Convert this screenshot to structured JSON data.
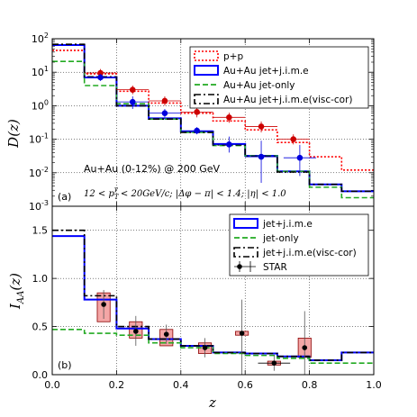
{
  "chart_data": [
    {
      "panel_id": "a",
      "type": "line",
      "panel_label": "(a)",
      "ylabel": "D(z)",
      "yscale": "log",
      "ylim": [
        0.001,
        100
      ],
      "xlim": [
        0.0,
        1.0
      ],
      "yticks": [
        {
          "value": 100,
          "base": "10",
          "exp": "2"
        },
        {
          "value": 10,
          "base": "10",
          "exp": "1"
        },
        {
          "value": 1,
          "base": "10",
          "exp": "0"
        },
        {
          "value": 0.1,
          "base": "10",
          "exp": "-1"
        },
        {
          "value": 0.01,
          "base": "10",
          "exp": "-2"
        },
        {
          "value": 0.001,
          "base": "10",
          "exp": "-3"
        }
      ],
      "grid": true,
      "legend_position": "top-right",
      "annotations": {
        "system": "Au+Au (0-12%) @ 200 GeV",
        "cuts": "12 < p_T^γ < 20GeV/c; |Δφ − π| < 1.4; |η| < 1.0",
        "cuts_parts": {
          "pre": "12 < p",
          "sub": "T",
          "sup": "γ",
          "post": " < 20GeV/c; |Δφ − π| < 1.4; |η| < 1.0"
        }
      },
      "bin_edges": [
        0.0,
        0.1,
        0.2,
        0.3,
        0.4,
        0.5,
        0.6,
        0.7,
        0.8,
        0.9,
        1.0
      ],
      "series": [
        {
          "name": "p+p",
          "color": "#ff0000",
          "style": "dotted",
          "values": [
            45,
            9.0,
            2.7,
            1.2,
            0.6,
            0.35,
            0.19,
            0.08,
            0.03,
            0.012
          ]
        },
        {
          "name": "Au+Au jet+j.i.m.e",
          "color": "#0000ff",
          "style": "solid",
          "values": [
            65,
            7.0,
            1.0,
            0.42,
            0.17,
            0.072,
            0.032,
            0.011,
            0.0045,
            0.0028
          ]
        },
        {
          "name": "Au+Au jet-only",
          "color": "#22aa22",
          "style": "dashed",
          "values": [
            21,
            4.0,
            1.15,
            0.4,
            0.16,
            0.065,
            0.032,
            0.011,
            0.0037,
            0.0018
          ]
        },
        {
          "name": "Au+Au jet+j.i.m.e(visc-cor)",
          "color": "#000000",
          "style": "dashdot",
          "values": [
            68,
            7.3,
            1.0,
            0.4,
            0.16,
            0.068,
            0.031,
            0.0105,
            0.0045,
            0.0028
          ]
        }
      ],
      "points": [
        {
          "name": "p+p data",
          "color": "#cc0000",
          "x": [
            0.15,
            0.25,
            0.35,
            0.45,
            0.55,
            0.65,
            0.75
          ],
          "y": [
            9.5,
            3.0,
            1.4,
            0.65,
            0.45,
            0.24,
            0.1
          ],
          "yerr_low": [
            2.5,
            0.8,
            0.4,
            0.2,
            0.14,
            0.08,
            0.03
          ],
          "yerr_high": [
            3.0,
            1.0,
            0.5,
            0.25,
            0.17,
            0.1,
            0.04
          ]
        },
        {
          "name": "Au+Au data",
          "color": "#0000dd",
          "x": [
            0.15,
            0.25,
            0.35,
            0.45,
            0.55,
            0.65,
            0.77
          ],
          "y": [
            7.0,
            1.3,
            0.6,
            0.18,
            0.07,
            0.03,
            0.028
          ],
          "yerr_low": [
            1.5,
            0.5,
            0.15,
            0.04,
            0.03,
            0.025,
            0.02
          ],
          "yerr_high": [
            1.8,
            0.6,
            0.2,
            0.05,
            0.05,
            0.06,
            0.04
          ]
        }
      ]
    },
    {
      "panel_id": "b",
      "type": "line",
      "panel_label": "(b)",
      "ylabel": "I_AA(z)",
      "ylabel_parts": {
        "main": "I",
        "sub": "AA",
        "post": "(z)"
      },
      "xlabel": "z",
      "ylim": [
        0.0,
        1.75
      ],
      "xlim": [
        0.0,
        1.0
      ],
      "xticks": [
        "0.0",
        "0.2",
        "0.4",
        "0.6",
        "0.8",
        "1.0"
      ],
      "yticks": [
        "0.0",
        "0.5",
        "1.0",
        "1.5"
      ],
      "grid": true,
      "legend_position": "top-right",
      "bin_edges": [
        0.0,
        0.1,
        0.2,
        0.3,
        0.4,
        0.5,
        0.6,
        0.7,
        0.8,
        0.9,
        1.0
      ],
      "series": [
        {
          "name": "jet+j.i.m.e",
          "color": "#0000ff",
          "style": "solid",
          "values": [
            1.44,
            0.78,
            0.48,
            0.37,
            0.3,
            0.23,
            0.22,
            0.19,
            0.15,
            0.23
          ]
        },
        {
          "name": "jet-only",
          "color": "#22aa22",
          "style": "dashed",
          "values": [
            0.47,
            0.43,
            0.41,
            0.33,
            0.28,
            0.22,
            0.2,
            0.17,
            0.12,
            0.12
          ]
        },
        {
          "name": "jet+j.i.m.e(visc-cor)",
          "color": "#000000",
          "style": "dashdot",
          "values": [
            1.5,
            0.82,
            0.5,
            0.37,
            0.3,
            0.23,
            0.22,
            0.19,
            0.15,
            0.23
          ]
        }
      ],
      "points": [
        {
          "name": "STAR",
          "color": "#000000",
          "x": [
            0.16,
            0.26,
            0.355,
            0.475,
            0.59,
            0.69,
            0.785
          ],
          "y": [
            0.73,
            0.45,
            0.42,
            0.28,
            0.43,
            0.12,
            0.28
          ],
          "yerr_low": [
            0.15,
            0.15,
            0.1,
            0.1,
            0.43,
            0.08,
            0.28
          ],
          "yerr_high": [
            0.15,
            0.16,
            0.1,
            0.1,
            0.35,
            0.08,
            0.38
          ],
          "xerr": [
            0.0,
            0.0,
            0.0,
            0.0,
            0.0,
            0.05,
            0.0
          ],
          "sys_low": [
            0.55,
            0.38,
            0.3,
            0.22,
            0.41,
            0.1,
            0.18
          ],
          "sys_high": [
            0.85,
            0.55,
            0.47,
            0.33,
            0.45,
            0.14,
            0.38
          ],
          "sys_color": "#f4a6a6"
        }
      ]
    }
  ],
  "legend_a_labels": [
    "p+p",
    "Au+Au jet+j.i.m.e",
    "Au+Au jet-only",
    "Au+Au jet+j.i.m.e(visc-cor)"
  ],
  "legend_b_labels": [
    "jet+j.i.m.e",
    "jet-only",
    "jet+j.i.m.e(visc-cor)",
    "STAR"
  ]
}
